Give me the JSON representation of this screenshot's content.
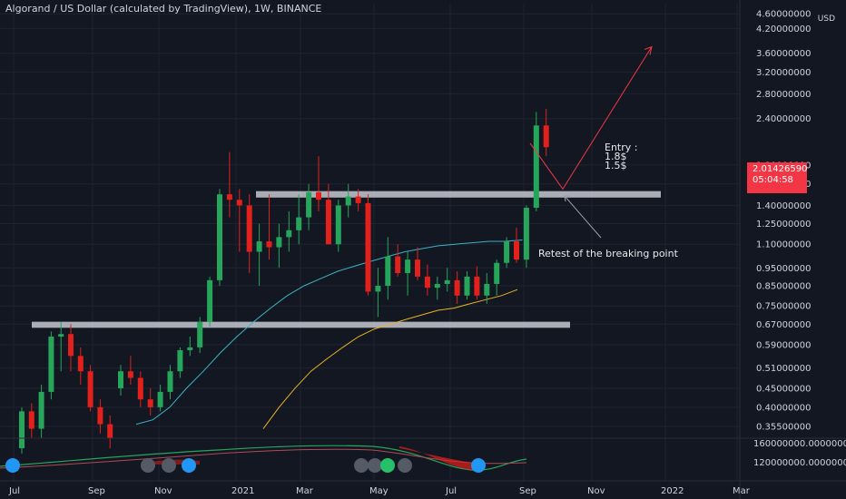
{
  "header": {
    "title": "Algorand / US Dollar (calculated by TradingView), 1W, BINANCE",
    "currency": "USD"
  },
  "last_price": {
    "value": "2.01426590",
    "countdown": "05:04:58",
    "color": "#f23645"
  },
  "annotations": {
    "entry_title": "Entry :",
    "entry_1": "1.8$",
    "entry_2": "1.5$",
    "retest_note": "Retest of the breaking point"
  },
  "colors": {
    "background": "#131722",
    "up_candle": "#26a65b",
    "down_candle": "#e3211c",
    "ma_fast": "#3ab4c4",
    "ma_slow": "#e6b422",
    "zone": "#c6c8cf",
    "arrow": "#f23645"
  },
  "chart_data": {
    "type": "candlestick",
    "scale": "log",
    "interval": "1W",
    "ylim": [
      0.33,
      4.9
    ],
    "price_ticks": [
      "4.60000000",
      "4.20000000",
      "3.60000000",
      "3.20000000",
      "2.80000000",
      "2.40000000",
      "1.80000000",
      "1.60000000",
      "1.40000000",
      "1.25000000",
      "1.10000000",
      "0.95000000",
      "0.85000000",
      "0.75000000",
      "0.67000000",
      "0.59000000",
      "0.51000000",
      "0.45000000",
      "0.40000000",
      "0.35500000"
    ],
    "time_labels": [
      "Jul",
      "Sep",
      "Nov",
      "2021",
      "Mar",
      "May",
      "Jul",
      "Sep",
      "Nov",
      "2022",
      "Mar"
    ],
    "grid": true,
    "candles": [
      {
        "o": 0.31,
        "h": 0.4,
        "l": 0.3,
        "c": 0.39
      },
      {
        "o": 0.39,
        "h": 0.41,
        "l": 0.33,
        "c": 0.35
      },
      {
        "o": 0.35,
        "h": 0.46,
        "l": 0.33,
        "c": 0.44
      },
      {
        "o": 0.44,
        "h": 0.64,
        "l": 0.42,
        "c": 0.62
      },
      {
        "o": 0.62,
        "h": 0.68,
        "l": 0.5,
        "c": 0.63
      },
      {
        "o": 0.63,
        "h": 0.67,
        "l": 0.5,
        "c": 0.55
      },
      {
        "o": 0.55,
        "h": 0.58,
        "l": 0.46,
        "c": 0.5
      },
      {
        "o": 0.5,
        "h": 0.52,
        "l": 0.39,
        "c": 0.4
      },
      {
        "o": 0.4,
        "h": 0.42,
        "l": 0.34,
        "c": 0.36
      },
      {
        "o": 0.36,
        "h": 0.38,
        "l": 0.31,
        "c": 0.33
      },
      {
        "o": 0.45,
        "h": 0.52,
        "l": 0.43,
        "c": 0.5
      },
      {
        "o": 0.5,
        "h": 0.55,
        "l": 0.46,
        "c": 0.48
      },
      {
        "o": 0.48,
        "h": 0.5,
        "l": 0.4,
        "c": 0.42
      },
      {
        "o": 0.42,
        "h": 0.45,
        "l": 0.38,
        "c": 0.4
      },
      {
        "o": 0.4,
        "h": 0.46,
        "l": 0.39,
        "c": 0.44
      },
      {
        "o": 0.44,
        "h": 0.52,
        "l": 0.42,
        "c": 0.5
      },
      {
        "o": 0.5,
        "h": 0.58,
        "l": 0.48,
        "c": 0.57
      },
      {
        "o": 0.57,
        "h": 0.62,
        "l": 0.55,
        "c": 0.58
      },
      {
        "o": 0.58,
        "h": 0.7,
        "l": 0.56,
        "c": 0.68
      },
      {
        "o": 0.68,
        "h": 0.9,
        "l": 0.66,
        "c": 0.88
      },
      {
        "o": 0.88,
        "h": 1.55,
        "l": 0.85,
        "c": 1.5
      },
      {
        "o": 1.5,
        "h": 1.95,
        "l": 1.3,
        "c": 1.45
      },
      {
        "o": 1.45,
        "h": 1.55,
        "l": 1.05,
        "c": 1.4
      },
      {
        "o": 1.4,
        "h": 1.5,
        "l": 0.92,
        "c": 1.05
      },
      {
        "o": 1.05,
        "h": 1.25,
        "l": 0.85,
        "c": 1.12
      },
      {
        "o": 1.12,
        "h": 1.5,
        "l": 1.0,
        "c": 1.08
      },
      {
        "o": 1.08,
        "h": 1.25,
        "l": 0.95,
        "c": 1.15
      },
      {
        "o": 1.15,
        "h": 1.35,
        "l": 1.05,
        "c": 1.2
      },
      {
        "o": 1.2,
        "h": 1.5,
        "l": 1.1,
        "c": 1.3
      },
      {
        "o": 1.3,
        "h": 1.6,
        "l": 1.2,
        "c": 1.52
      },
      {
        "o": 1.52,
        "h": 1.9,
        "l": 1.35,
        "c": 1.45
      },
      {
        "o": 1.45,
        "h": 1.6,
        "l": 1.1,
        "c": 1.1
      },
      {
        "o": 1.1,
        "h": 1.45,
        "l": 1.05,
        "c": 1.4
      },
      {
        "o": 1.4,
        "h": 1.6,
        "l": 1.3,
        "c": 1.48
      },
      {
        "o": 1.48,
        "h": 1.55,
        "l": 1.35,
        "c": 1.42
      },
      {
        "o": 1.42,
        "h": 1.5,
        "l": 0.8,
        "c": 0.82
      },
      {
        "o": 0.82,
        "h": 0.95,
        "l": 0.7,
        "c": 0.85
      },
      {
        "o": 0.85,
        "h": 1.15,
        "l": 0.78,
        "c": 1.02
      },
      {
        "o": 1.02,
        "h": 1.1,
        "l": 0.9,
        "c": 0.92
      },
      {
        "o": 0.92,
        "h": 1.05,
        "l": 0.8,
        "c": 1.0
      },
      {
        "o": 1.0,
        "h": 1.08,
        "l": 0.88,
        "c": 0.9
      },
      {
        "o": 0.9,
        "h": 0.97,
        "l": 0.8,
        "c": 0.84
      },
      {
        "o": 0.84,
        "h": 0.9,
        "l": 0.78,
        "c": 0.86
      },
      {
        "o": 0.86,
        "h": 0.95,
        "l": 0.82,
        "c": 0.88
      },
      {
        "o": 0.88,
        "h": 0.93,
        "l": 0.76,
        "c": 0.8
      },
      {
        "o": 0.8,
        "h": 0.93,
        "l": 0.78,
        "c": 0.9
      },
      {
        "o": 0.9,
        "h": 0.96,
        "l": 0.78,
        "c": 0.8
      },
      {
        "o": 0.8,
        "h": 0.92,
        "l": 0.76,
        "c": 0.86
      },
      {
        "o": 0.86,
        "h": 1.0,
        "l": 0.8,
        "c": 0.98
      },
      {
        "o": 0.98,
        "h": 1.15,
        "l": 0.95,
        "c": 1.12
      },
      {
        "o": 1.12,
        "h": 1.22,
        "l": 0.98,
        "c": 1.0
      },
      {
        "o": 1.0,
        "h": 1.4,
        "l": 0.95,
        "c": 1.38
      },
      {
        "o": 1.38,
        "h": 2.5,
        "l": 1.35,
        "c": 2.3
      },
      {
        "o": 2.3,
        "h": 2.55,
        "l": 1.9,
        "c": 2.01
      }
    ],
    "ma_fast": [
      0.36,
      0.37,
      0.4,
      0.45,
      0.5,
      0.56,
      0.62,
      0.68,
      0.74,
      0.8,
      0.85,
      0.89,
      0.93,
      0.96,
      0.99,
      1.02,
      1.05,
      1.07,
      1.09,
      1.1,
      1.11,
      1.12,
      1.12,
      1.13
    ],
    "ma_slow": [
      0.35,
      0.4,
      0.45,
      0.5,
      0.54,
      0.58,
      0.62,
      0.65,
      0.67,
      0.69,
      0.71,
      0.73,
      0.74,
      0.76,
      0.78,
      0.8,
      0.83
    ],
    "zones": [
      {
        "low": 1.47,
        "high": 1.53
      },
      {
        "low": 0.655,
        "high": 0.68
      }
    ],
    "projection": [
      2.06,
      1.55,
      3.75
    ],
    "oscillator": {
      "ticks": [
        "160000000.00000000",
        "120000000.00000000"
      ]
    }
  }
}
